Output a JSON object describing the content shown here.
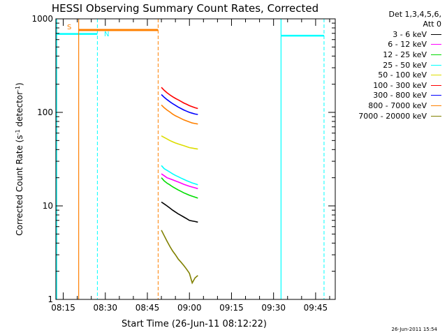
{
  "chart_data": {
    "type": "line",
    "title": "HESSI Observing Summary Count Rates, Corrected",
    "xlabel": "Start Time (26-Jun-11 08:12:22)",
    "ylabel": "Corrected Count Rate (s⁻¹ detector⁻¹)",
    "ylabel_parts": {
      "main": "Corrected Count Rate (s",
      "exp1": "-1",
      "mid": " detector",
      "exp2": "-1",
      "end": ")"
    },
    "yscale": "log",
    "ylim": [
      1,
      1000
    ],
    "y_ticks": [
      1,
      10,
      100,
      1000
    ],
    "y_tick_labels": [
      "1",
      "10",
      "100",
      "1000"
    ],
    "xlim": [
      "08:12:22",
      "09:52:00"
    ],
    "x_ticks": [
      "08:15",
      "08:30",
      "08:45",
      "09:00",
      "09:15",
      "09:30",
      "09:45"
    ],
    "grid": false,
    "legend_position": "right",
    "legend_header": [
      "Det 1,3,4,5,6,",
      "Att 0"
    ],
    "series": [
      {
        "name": "3 - 6 keV",
        "color": "#000000",
        "x": [
          "08:50:00",
          "08:51:00",
          "08:52:00",
          "08:53:00",
          "08:54:00",
          "08:55:00",
          "08:56:00",
          "08:57:00",
          "08:58:00",
          "08:59:00",
          "09:00:00",
          "09:01:00",
          "09:02:00",
          "09:03:00"
        ],
        "values": [
          11,
          10.5,
          10,
          9.5,
          9,
          8.6,
          8.2,
          7.9,
          7.6,
          7.3,
          7.0,
          6.9,
          6.8,
          6.7
        ]
      },
      {
        "name": "6 - 12 keV",
        "color": "#ff00ff",
        "x": [
          "08:50:00",
          "08:51:00",
          "08:52:00",
          "08:53:00",
          "08:54:00",
          "08:55:00",
          "08:56:00",
          "08:57:00",
          "08:58:00",
          "08:59:00",
          "09:00:00",
          "09:01:00",
          "09:02:00",
          "09:03:00"
        ],
        "values": [
          22,
          21,
          20,
          19.5,
          19,
          18.5,
          18,
          17.5,
          17,
          16.6,
          16.2,
          15.9,
          15.6,
          15.3
        ]
      },
      {
        "name": "12 - 25 keV",
        "color": "#00dd00",
        "x": [
          "08:50:00",
          "08:51:00",
          "08:52:00",
          "08:53:00",
          "08:54:00",
          "08:55:00",
          "08:56:00",
          "08:57:00",
          "08:58:00",
          "08:59:00",
          "09:00:00",
          "09:01:00",
          "09:02:00",
          "09:03:00"
        ],
        "values": [
          20,
          18.5,
          17.5,
          16.8,
          16,
          15.4,
          14.8,
          14.3,
          13.8,
          13.4,
          13.0,
          12.7,
          12.4,
          12.1
        ]
      },
      {
        "name": "25 - 50 keV",
        "color": "#00ffff",
        "x": [
          "08:50:00",
          "08:51:00",
          "08:52:00",
          "08:53:00",
          "08:54:00",
          "08:55:00",
          "08:56:00",
          "08:57:00",
          "08:58:00",
          "08:59:00",
          "09:00:00",
          "09:01:00",
          "09:02:00",
          "09:03:00"
        ],
        "values": [
          27,
          25,
          24,
          23,
          22,
          21.2,
          20.5,
          19.8,
          19.2,
          18.6,
          18.1,
          17.6,
          17.2,
          16.8
        ]
      },
      {
        "name": "50 - 100 keV",
        "color": "#dddd00",
        "x": [
          "08:50:00",
          "08:51:00",
          "08:52:00",
          "08:53:00",
          "08:54:00",
          "08:55:00",
          "08:56:00",
          "08:57:00",
          "08:58:00",
          "08:59:00",
          "09:00:00",
          "09:01:00",
          "09:02:00",
          "09:03:00"
        ],
        "values": [
          56,
          54,
          52,
          50,
          48.5,
          47,
          46,
          45,
          44,
          43,
          42,
          41.5,
          41,
          40.5
        ]
      },
      {
        "name": "100 - 300 keV",
        "color": "#ff0000",
        "x": [
          "08:50:00",
          "08:51:00",
          "08:52:00",
          "08:53:00",
          "08:54:00",
          "08:55:00",
          "08:56:00",
          "08:57:00",
          "08:58:00",
          "08:59:00",
          "09:00:00",
          "09:01:00",
          "09:02:00",
          "09:03:00"
        ],
        "values": [
          185,
          172,
          162,
          154,
          147,
          141,
          136,
          131,
          126,
          122,
          118,
          115,
          112,
          110
        ]
      },
      {
        "name": "300 - 800 keV",
        "color": "#0000ff",
        "x": [
          "08:50:00",
          "08:51:00",
          "08:52:00",
          "08:53:00",
          "08:54:00",
          "08:55:00",
          "08:56:00",
          "08:57:00",
          "08:58:00",
          "08:59:00",
          "09:00:00",
          "09:01:00",
          "09:02:00",
          "09:03:00"
        ],
        "values": [
          155,
          145,
          137,
          130,
          124,
          119,
          114,
          110,
          106,
          103,
          100,
          98,
          96,
          95
        ]
      },
      {
        "name": "800 - 7000 keV",
        "color": "#ff8000",
        "x": [
          "08:50:00",
          "08:51:00",
          "08:52:00",
          "08:53:00",
          "08:54:00",
          "08:55:00",
          "08:56:00",
          "08:57:00",
          "08:58:00",
          "08:59:00",
          "09:00:00",
          "09:01:00",
          "09:02:00",
          "09:03:00"
        ],
        "values": [
          120,
          112,
          106,
          101,
          96,
          92,
          89,
          86,
          83,
          81,
          79,
          77,
          76,
          75
        ]
      },
      {
        "name": "7000 - 20000 keV",
        "color": "#808000",
        "x": [
          "08:50:00",
          "08:51:00",
          "08:52:00",
          "08:53:00",
          "08:54:00",
          "08:55:00",
          "08:56:00",
          "08:57:00",
          "08:58:00",
          "08:59:00",
          "09:00:00",
          "09:01:00",
          "09:02:00",
          "09:03:00"
        ],
        "values": [
          5.5,
          4.8,
          4.2,
          3.7,
          3.3,
          3.0,
          2.7,
          2.5,
          2.3,
          2.1,
          1.9,
          1.5,
          1.7,
          1.8
        ]
      }
    ],
    "annotations": [
      {
        "label": "S",
        "color": "#ff8000"
      },
      {
        "label": "N",
        "color": "#00ffff"
      }
    ],
    "timestamp": "26-Jun-2011 15:54"
  }
}
